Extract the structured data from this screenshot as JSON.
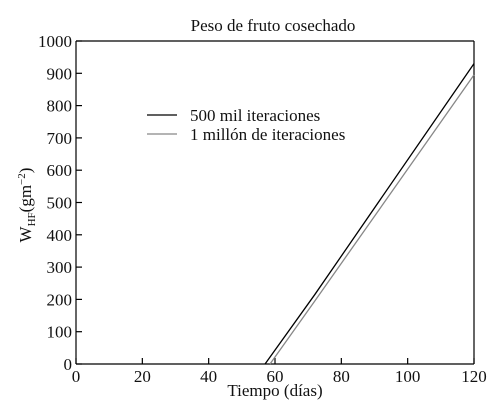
{
  "chart_data": {
    "type": "line",
    "title": "Peso de fruto cosechado",
    "xlabel": "Tiempo (días)",
    "ylabel": {
      "main": "W",
      "sub": "HF",
      "unit": "(gm",
      "sup": "−2",
      "close": ")"
    },
    "xlim": [
      0,
      120
    ],
    "ylim": [
      0,
      1000
    ],
    "xticks": [
      0,
      20,
      40,
      60,
      80,
      100,
      120
    ],
    "yticks": [
      0,
      100,
      200,
      300,
      400,
      500,
      600,
      700,
      800,
      900,
      1000
    ],
    "grid": false,
    "legend_position": "upper-left",
    "series": [
      {
        "name": "500 mil iteraciones",
        "color": "#000000",
        "x": [
          57,
          72,
          120
        ],
        "y": [
          0,
          215,
          930
        ]
      },
      {
        "name": "1 millón de iteraciones",
        "color": "#888888",
        "x": [
          58.5,
          72,
          120
        ],
        "y": [
          0,
          195,
          895
        ]
      }
    ]
  }
}
